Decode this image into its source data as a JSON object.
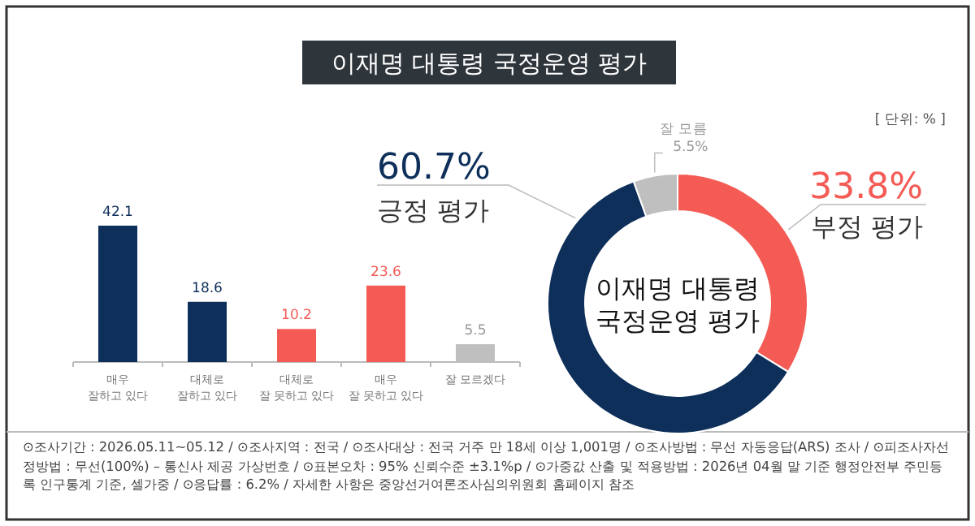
{
  "chart_data": [
    {
      "type": "bar",
      "title": "이재명 대통령 국정운영 평가",
      "categories": [
        "매우\n잘하고 있다",
        "대체로\n잘하고 있다",
        "대체로\n잘 못하고 있다",
        "매우\n잘 못하고 있다",
        "잘 모르겠다"
      ],
      "values": [
        42.1,
        18.6,
        10.2,
        23.6,
        5.5
      ],
      "colors": [
        "#0d2f5a",
        "#0d2f5a",
        "#f45b55",
        "#f45b55",
        "#bfbfbf"
      ],
      "data_labels": true,
      "annotations": [
        "⊙조사기간 : 2026.05.11~05.12 / ⊙조사지역 : 전국 / ⊙조사대상 : 전국 거주 만 18세 이상 1,001명 / ⊙조사방법 : 무선 자동응답(ARS) 조사 / ⊙피조사자선정방법 : 무선(100%) – 통신사 제공 가상번호 / ⊙표본오차 : 95% 신뢰수준 ±3.1%p / ⊙가중값 산출 및 적용방법 : 2026년 04월 말 기준 행정안전부 주민등록 인구통계 기준, 셀가중 / ⊙응답률 : 6.2% / 자세한 사항은 중앙선거여론조사심의위원회 홈페이지 참조"
      ]
    },
    {
      "type": "donut",
      "title": "이재명 대통령\n국정운영 평가",
      "categories": [
        "부정 평가",
        "긍정 평가",
        "잘 모름"
      ],
      "values": [
        33.8,
        60.7,
        5.5
      ],
      "colors": [
        "#f45b55",
        "#0d2f5a",
        "#bfbfbf"
      ],
      "value_labels": [
        "33.8%",
        "60.7%",
        "5.5%"
      ],
      "annotations": [
        "[ 단위: % ]"
      ]
    }
  ]
}
